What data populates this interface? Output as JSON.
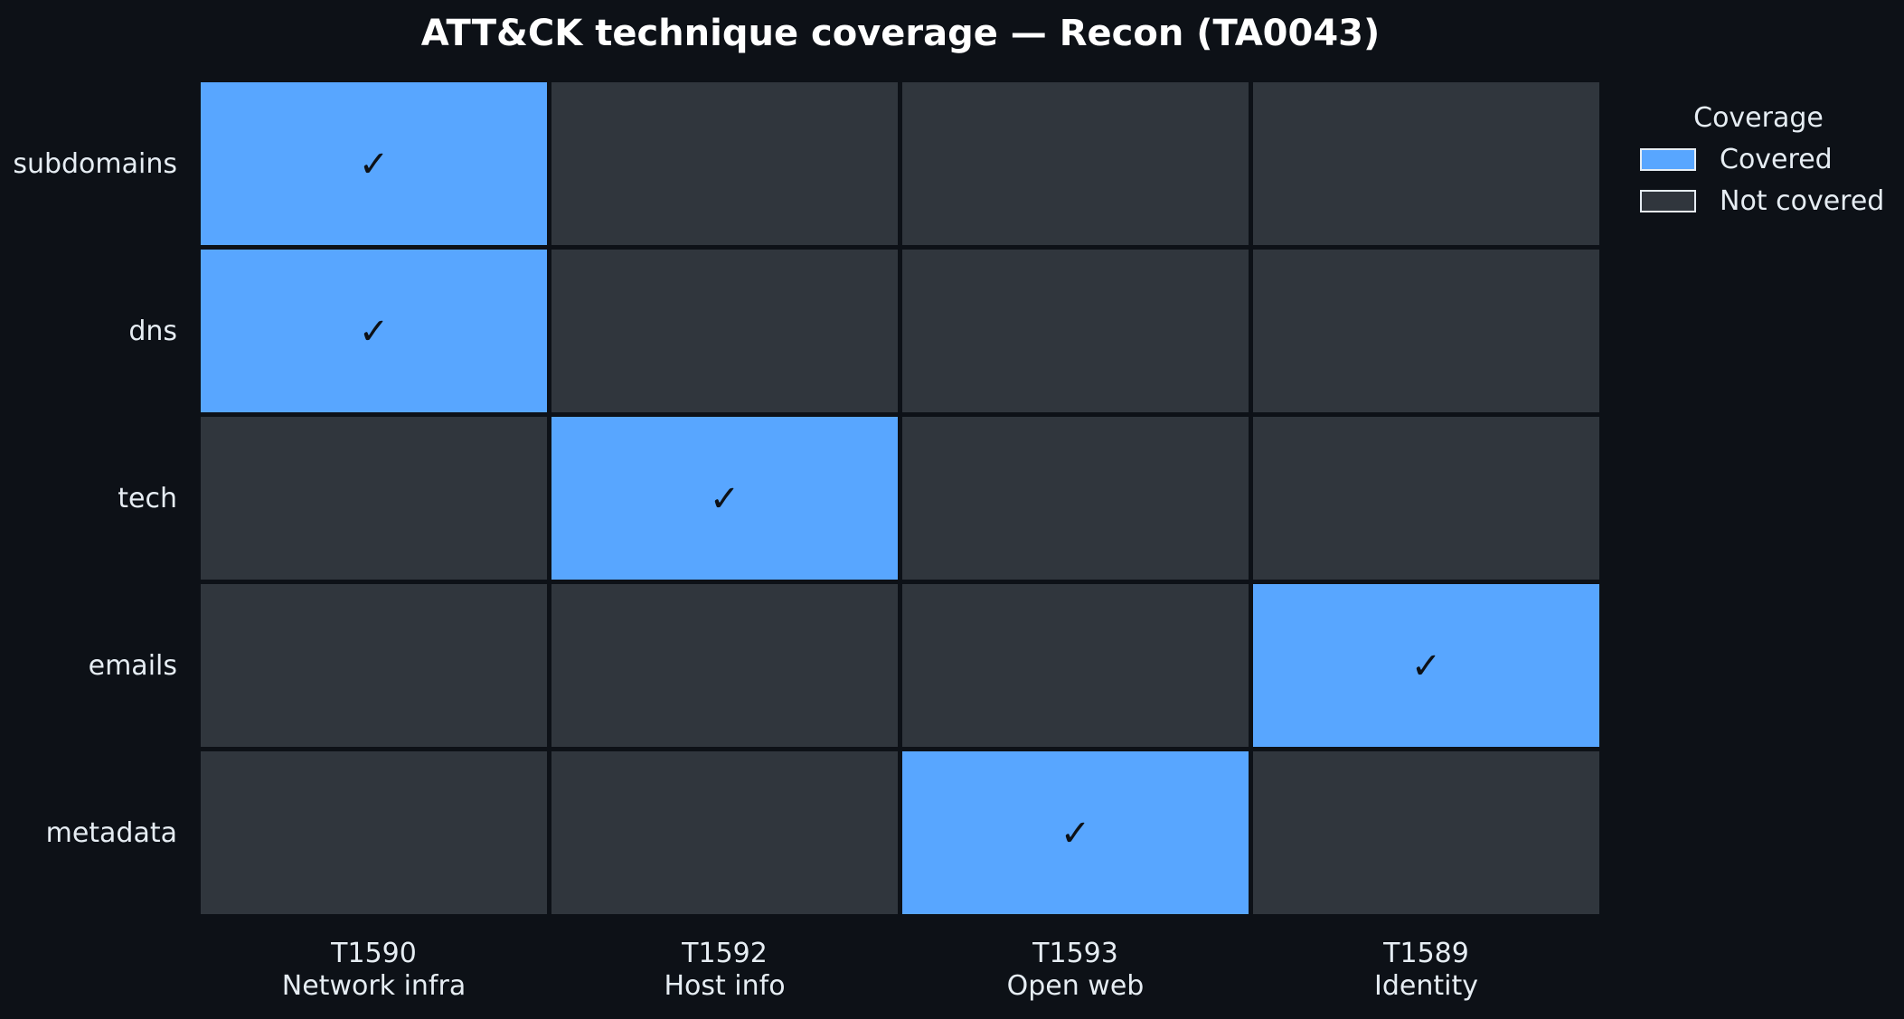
{
  "chart_data": {
    "type": "heatmap",
    "title": "ATT&CK technique coverage — Recon (TA0043)",
    "rows": [
      "subdomains",
      "dns",
      "tech",
      "emails",
      "metadata"
    ],
    "columns": [
      {
        "id": "T1590",
        "name": "Network infra"
      },
      {
        "id": "T1592",
        "name": "Host info"
      },
      {
        "id": "T1593",
        "name": "Open web"
      },
      {
        "id": "T1589",
        "name": "Identity"
      }
    ],
    "values": [
      [
        1,
        0,
        0,
        0
      ],
      [
        1,
        0,
        0,
        0
      ],
      [
        0,
        1,
        0,
        0
      ],
      [
        0,
        0,
        0,
        1
      ],
      [
        0,
        0,
        1,
        0
      ]
    ],
    "check_mark": "✓",
    "legend": {
      "title": "Coverage",
      "placement": "top-right",
      "items": [
        {
          "label": "Covered",
          "value": 1,
          "color": "#58a6ff"
        },
        {
          "label": "Not covered",
          "value": 0,
          "color": "#30363d"
        }
      ]
    },
    "colors": {
      "background": "#0d1117",
      "covered": "#58a6ff",
      "not_covered": "#30363d"
    }
  }
}
